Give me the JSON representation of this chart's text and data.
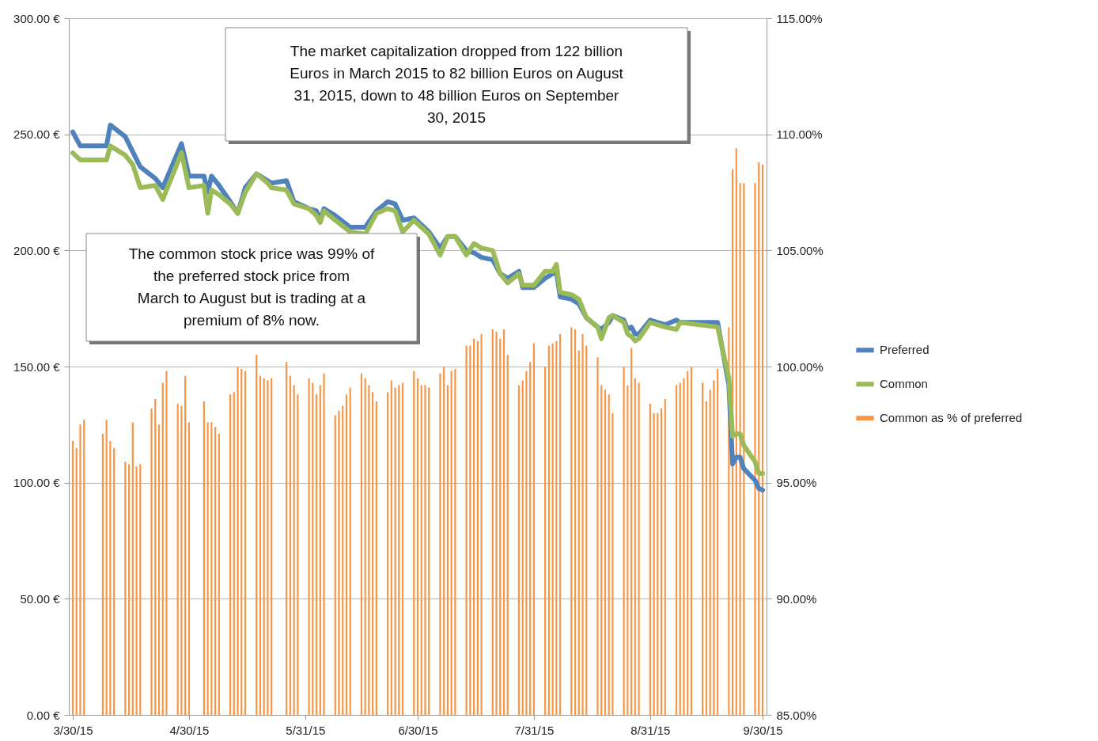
{
  "chart_data": {
    "type": "line",
    "annotations": [
      "The market capitalization dropped from 122 billion Euros in March 2015 to 82 billion Euros on August 31, 2015, down to 48 billion Euros on September 30, 2015",
      "The common stock price was 99% of the preferred stock price from March to August but is trading at a premium of 8% now."
    ],
    "xlim": [
      "2015-03-30",
      "2015-09-30"
    ],
    "xticks": [
      {
        "value": "2015-03-30",
        "label": "3/30/15"
      },
      {
        "value": "2015-04-30",
        "label": "4/30/15"
      },
      {
        "value": "2015-05-31",
        "label": "5/31/15"
      },
      {
        "value": "2015-06-30",
        "label": "6/30/15"
      },
      {
        "value": "2015-07-31",
        "label": "7/31/15"
      },
      {
        "value": "2015-08-31",
        "label": "8/31/15"
      },
      {
        "value": "2015-09-30",
        "label": "9/30/15"
      }
    ],
    "ylim": [
      0,
      300
    ],
    "yticks": [
      {
        "value": 0,
        "label": "0.00 €"
      },
      {
        "value": 50,
        "label": "50.00 €"
      },
      {
        "value": 100,
        "label": "100.00 €"
      },
      {
        "value": 150,
        "label": "150.00 €"
      },
      {
        "value": 200,
        "label": "200.00 €"
      },
      {
        "value": 250,
        "label": "250.00 €"
      },
      {
        "value": 300,
        "label": "300.00 €"
      }
    ],
    "y2lim": [
      85,
      115
    ],
    "y2ticks": [
      {
        "value": 85,
        "label": "85.00%"
      },
      {
        "value": 90,
        "label": "90.00%"
      },
      {
        "value": 95,
        "label": "95.00%"
      },
      {
        "value": 100,
        "label": "100.00%"
      },
      {
        "value": 105,
        "label": "105.00%"
      },
      {
        "value": 110,
        "label": "110.00%"
      },
      {
        "value": 115,
        "label": "115.00%"
      }
    ],
    "grid": "y",
    "legend": "right",
    "marker": "none",
    "line_style": "solid",
    "series": [
      {
        "name": "Preferred",
        "color": "#4f81bd",
        "type": "line",
        "x": [
          "2015-03-30",
          "2015-04-01",
          "2015-04-08",
          "2015-04-09",
          "2015-04-13",
          "2015-04-17",
          "2015-04-21",
          "2015-04-23",
          "2015-04-28",
          "2015-04-30",
          "2015-05-04",
          "2015-05-05",
          "2015-05-06",
          "2015-05-08",
          "2015-05-11",
          "2015-05-13",
          "2015-05-15",
          "2015-05-18",
          "2015-05-21",
          "2015-05-22",
          "2015-05-26",
          "2015-05-28",
          "2015-06-01",
          "2015-06-03",
          "2015-06-04",
          "2015-06-05",
          "2015-06-08",
          "2015-06-12",
          "2015-06-16",
          "2015-06-19",
          "2015-06-22",
          "2015-06-24",
          "2015-06-26",
          "2015-06-29",
          "2015-07-01",
          "2015-07-03",
          "2015-07-06",
          "2015-07-08",
          "2015-07-10",
          "2015-07-13",
          "2015-07-15",
          "2015-07-17",
          "2015-07-20",
          "2015-07-22",
          "2015-07-24",
          "2015-07-27",
          "2015-07-28",
          "2015-07-31",
          "2015-08-03",
          "2015-08-05",
          "2015-08-06",
          "2015-08-07",
          "2015-08-10",
          "2015-08-12",
          "2015-08-14",
          "2015-08-17",
          "2015-08-18",
          "2015-08-20",
          "2015-08-21",
          "2015-08-24",
          "2015-08-25",
          "2015-08-26",
          "2015-08-27",
          "2015-08-28",
          "2015-08-31",
          "2015-09-02",
          "2015-09-04",
          "2015-09-07",
          "2015-09-08",
          "2015-09-18",
          "2015-09-21",
          "2015-09-22",
          "2015-09-23",
          "2015-09-24",
          "2015-09-25",
          "2015-09-28",
          "2015-09-29",
          "2015-09-30"
        ],
        "values": [
          251,
          245,
          245,
          254,
          249,
          236,
          231,
          227,
          246,
          232,
          232,
          225,
          232,
          228,
          221,
          216,
          227,
          233,
          230,
          229,
          230,
          221,
          218,
          217,
          213,
          218,
          215,
          210,
          210,
          217,
          221,
          220,
          213,
          214,
          211,
          208,
          201,
          206,
          206,
          200,
          199,
          197,
          196,
          190,
          188,
          191,
          184,
          184,
          188,
          190,
          191,
          180,
          179,
          177,
          171,
          167,
          166,
          169,
          172,
          170,
          166,
          167,
          164,
          164,
          170,
          169,
          168,
          170,
          169,
          169,
          142,
          108,
          111,
          111,
          106,
          101,
          97.5,
          96.8
        ]
      },
      {
        "name": "Common",
        "color": "#9bbb59",
        "type": "line",
        "x": [
          "2015-03-30",
          "2015-04-01",
          "2015-04-08",
          "2015-04-09",
          "2015-04-13",
          "2015-04-15",
          "2015-04-17",
          "2015-04-21",
          "2015-04-23",
          "2015-04-28",
          "2015-04-30",
          "2015-05-04",
          "2015-05-05",
          "2015-05-06",
          "2015-05-08",
          "2015-05-11",
          "2015-05-13",
          "2015-05-15",
          "2015-05-18",
          "2015-05-21",
          "2015-05-22",
          "2015-05-26",
          "2015-05-28",
          "2015-06-01",
          "2015-06-03",
          "2015-06-04",
          "2015-06-05",
          "2015-06-08",
          "2015-06-12",
          "2015-06-16",
          "2015-06-19",
          "2015-06-22",
          "2015-06-24",
          "2015-06-26",
          "2015-06-29",
          "2015-07-01",
          "2015-07-03",
          "2015-07-06",
          "2015-07-08",
          "2015-07-10",
          "2015-07-13",
          "2015-07-15",
          "2015-07-17",
          "2015-07-20",
          "2015-07-22",
          "2015-07-24",
          "2015-07-27",
          "2015-07-28",
          "2015-07-31",
          "2015-08-03",
          "2015-08-05",
          "2015-08-06",
          "2015-08-07",
          "2015-08-10",
          "2015-08-12",
          "2015-08-14",
          "2015-08-17",
          "2015-08-18",
          "2015-08-20",
          "2015-08-21",
          "2015-08-24",
          "2015-08-25",
          "2015-08-26",
          "2015-08-27",
          "2015-08-28",
          "2015-08-31",
          "2015-09-02",
          "2015-09-04",
          "2015-09-07",
          "2015-09-08",
          "2015-09-18",
          "2015-09-21",
          "2015-09-22",
          "2015-09-23",
          "2015-09-24",
          "2015-09-25",
          "2015-09-28",
          "2015-09-29",
          "2015-09-30"
        ],
        "values": [
          242,
          239,
          239,
          245,
          241,
          237,
          227,
          228,
          222,
          242,
          227,
          228,
          216,
          226,
          224,
          220,
          216,
          225,
          233,
          229,
          227,
          226,
          220,
          218,
          215,
          212,
          217,
          213,
          208,
          207,
          216,
          218,
          217,
          208,
          213,
          210,
          207,
          198,
          206,
          206,
          198,
          203,
          201,
          200,
          190,
          186,
          190,
          185,
          185,
          191,
          191,
          194,
          182,
          181,
          179,
          171,
          167,
          162,
          171,
          172,
          169,
          164,
          163,
          161,
          162,
          169,
          168,
          167,
          166,
          169,
          167,
          145,
          120,
          121,
          121,
          116,
          109,
          104,
          104
        ]
      },
      {
        "name": "Common as % of preferred",
        "color": "#f79646",
        "type": "bar",
        "axis": "y2",
        "x": [
          "2015-03-30",
          "2015-03-31",
          "2015-04-01",
          "2015-04-02",
          "2015-04-07",
          "2015-04-08",
          "2015-04-09",
          "2015-04-10",
          "2015-04-13",
          "2015-04-14",
          "2015-04-15",
          "2015-04-16",
          "2015-04-17",
          "2015-04-20",
          "2015-04-21",
          "2015-04-22",
          "2015-04-23",
          "2015-04-24",
          "2015-04-27",
          "2015-04-28",
          "2015-04-29",
          "2015-04-30",
          "2015-05-04",
          "2015-05-05",
          "2015-05-06",
          "2015-05-07",
          "2015-05-08",
          "2015-05-11",
          "2015-05-12",
          "2015-05-13",
          "2015-05-14",
          "2015-05-15",
          "2015-05-18",
          "2015-05-19",
          "2015-05-20",
          "2015-05-21",
          "2015-05-22",
          "2015-05-26",
          "2015-05-27",
          "2015-05-28",
          "2015-05-29",
          "2015-06-01",
          "2015-06-02",
          "2015-06-03",
          "2015-06-04",
          "2015-06-05",
          "2015-06-08",
          "2015-06-09",
          "2015-06-10",
          "2015-06-11",
          "2015-06-12",
          "2015-06-15",
          "2015-06-16",
          "2015-06-17",
          "2015-06-18",
          "2015-06-19",
          "2015-06-22",
          "2015-06-23",
          "2015-06-24",
          "2015-06-25",
          "2015-06-26",
          "2015-06-29",
          "2015-06-30",
          "2015-07-01",
          "2015-07-02",
          "2015-07-03",
          "2015-07-06",
          "2015-07-07",
          "2015-07-08",
          "2015-07-09",
          "2015-07-10",
          "2015-07-13",
          "2015-07-14",
          "2015-07-15",
          "2015-07-16",
          "2015-07-17",
          "2015-07-20",
          "2015-07-21",
          "2015-07-22",
          "2015-07-23",
          "2015-07-24",
          "2015-07-27",
          "2015-07-28",
          "2015-07-29",
          "2015-07-30",
          "2015-07-31",
          "2015-08-03",
          "2015-08-04",
          "2015-08-05",
          "2015-08-06",
          "2015-08-07",
          "2015-08-10",
          "2015-08-11",
          "2015-08-12",
          "2015-08-13",
          "2015-08-14",
          "2015-08-17",
          "2015-08-18",
          "2015-08-19",
          "2015-08-20",
          "2015-08-21",
          "2015-08-24",
          "2015-08-25",
          "2015-08-26",
          "2015-08-27",
          "2015-08-28",
          "2015-08-31",
          "2015-09-01",
          "2015-09-02",
          "2015-09-03",
          "2015-09-04",
          "2015-09-07",
          "2015-09-08",
          "2015-09-09",
          "2015-09-10",
          "2015-09-11",
          "2015-09-14",
          "2015-09-15",
          "2015-09-16",
          "2015-09-17",
          "2015-09-18",
          "2015-09-21",
          "2015-09-22",
          "2015-09-23",
          "2015-09-24",
          "2015-09-25",
          "2015-09-28",
          "2015-09-29",
          "2015-09-30"
        ],
        "values": [
          96.8,
          96.5,
          97.5,
          97.7,
          97.1,
          97.7,
          96.8,
          96.5,
          95.9,
          95.8,
          97.6,
          95.7,
          95.8,
          98.2,
          98.6,
          97.5,
          99.3,
          99.8,
          98.4,
          98.3,
          99.6,
          97.6,
          98.5,
          97.6,
          97.6,
          97.4,
          97.1,
          98.8,
          98.9,
          100,
          99.9,
          99.8,
          100.5,
          99.6,
          99.5,
          99.4,
          99.5,
          100.2,
          99.6,
          99.2,
          98.8,
          99.5,
          99.3,
          98.8,
          99.2,
          99.7,
          97.9,
          98.1,
          98.3,
          98.8,
          99.1,
          99.7,
          99.5,
          99.2,
          98.9,
          98.5,
          98.9,
          99.4,
          99.1,
          99.2,
          99.3,
          99.8,
          99.5,
          99.2,
          99.2,
          99.1,
          99.7,
          100,
          99.2,
          99.8,
          99.9,
          100.9,
          100.9,
          101.2,
          101.1,
          101.4,
          101.6,
          101.5,
          101.2,
          101.6,
          100.5,
          99.2,
          99.4,
          99.8,
          100.2,
          101,
          100,
          100.9,
          101,
          101.1,
          101.4,
          101.7,
          101.6,
          100.7,
          101.4,
          100.9,
          100.4,
          99.2,
          99,
          98.8,
          98,
          100,
          99.2,
          100.8,
          99.5,
          99.3,
          98.4,
          98,
          98,
          98.2,
          98.6,
          99.2,
          99.3,
          99.5,
          99.8,
          100,
          99.3,
          98.5,
          99,
          99.4,
          99.9,
          101.7,
          108.5,
          109.4,
          107.9,
          107.9,
          107.9,
          108.8,
          108.7
        ]
      }
    ]
  }
}
